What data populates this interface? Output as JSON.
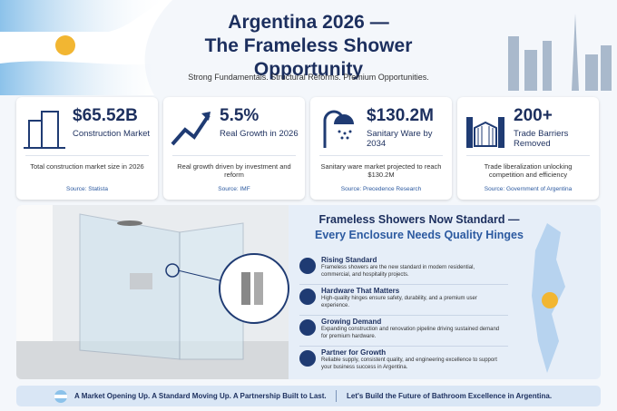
{
  "header": {
    "title_line1": "Argentina 2026 —",
    "title_line2": "The Frameless Shower Opportunity",
    "subtitle": "Strong Fundamentals. Structural Reforms. Premium Opportunities."
  },
  "stats": [
    {
      "value": "$65.52B",
      "label": "Construction Market",
      "description": "Total construction market size in 2026",
      "source": "Source: Statista"
    },
    {
      "value": "5.5%",
      "label": "Real Growth in 2026",
      "description": "Real growth driven by investment and reform",
      "source": "Source: IMF"
    },
    {
      "value": "$130.2M",
      "label": "Sanitary Ware by 2034",
      "description": "Sanitary ware market projected to reach $130.2M",
      "source": "Source: Precedence Research"
    },
    {
      "value": "200+",
      "label": "Trade Barriers Removed",
      "description": "Trade liberalization unlocking competition and efficiency",
      "source": "Source: Government of Argentina"
    }
  ],
  "feature": {
    "heading_line1": "Frameless Showers Now Standard —",
    "heading_line2": "Every Enclosure Needs Quality Hinges",
    "points": [
      {
        "title": "Rising Standard",
        "text": "Frameless showers are the new standard in modern residential, commercial, and hospitality projects."
      },
      {
        "title": "Hardware That Matters",
        "text": "High-quality hinges ensure safety, durability, and a premium user experience."
      },
      {
        "title": "Growing Demand",
        "text": "Expanding construction and renovation pipeline driving sustained demand for premium hardware."
      },
      {
        "title": "Partner for Growth",
        "text": "Reliable supply, consistent quality, and engineering excellence to support your business success in Argentina."
      }
    ]
  },
  "footer": {
    "left": "A Market Opening Up. A Standard Moving Up. A Partnership Built to Last.",
    "right": "Let's Build the Future of Bathroom Excellence in Argentina."
  }
}
